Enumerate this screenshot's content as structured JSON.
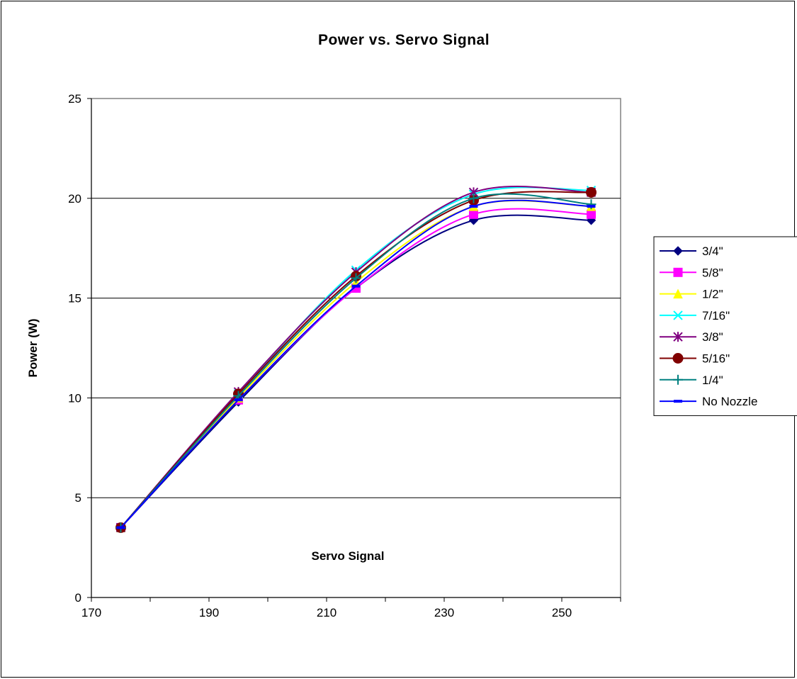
{
  "chart_data": {
    "type": "line",
    "title": "Power vs. Servo Signal",
    "xlabel": "Servo Signal",
    "ylabel": "Power (W)",
    "xlim": [
      170,
      260
    ],
    "ylim": [
      0,
      25
    ],
    "x_ticks": [
      170,
      190,
      210,
      230,
      250
    ],
    "y_ticks": [
      0,
      5,
      10,
      15,
      20,
      25
    ],
    "grid": "horizontal",
    "legend_position": "right",
    "x": [
      175,
      195,
      215,
      235,
      255
    ],
    "series": [
      {
        "name": "3/4\"",
        "color": "#000080",
        "marker": "diamond",
        "values": [
          3.5,
          9.8,
          15.5,
          18.9,
          18.9
        ]
      },
      {
        "name": "5/8\"",
        "color": "#FF00FF",
        "marker": "square",
        "values": [
          3.5,
          9.9,
          15.5,
          19.2,
          19.2
        ]
      },
      {
        "name": "1/2\"",
        "color": "#FFFF00",
        "marker": "triangle",
        "values": [
          3.5,
          10.0,
          15.8,
          19.6,
          19.6
        ]
      },
      {
        "name": "7/16\"",
        "color": "#00FFFF",
        "marker": "x",
        "values": [
          3.5,
          10.2,
          16.4,
          20.2,
          20.4
        ]
      },
      {
        "name": "3/8\"",
        "color": "#800080",
        "marker": "star",
        "values": [
          3.5,
          10.3,
          16.3,
          20.3,
          20.3
        ]
      },
      {
        "name": "5/16\"",
        "color": "#800000",
        "marker": "circle",
        "values": [
          3.5,
          10.2,
          16.1,
          19.9,
          20.3
        ]
      },
      {
        "name": "1/4\"",
        "color": "#008080",
        "marker": "plus",
        "values": [
          3.5,
          10.1,
          16.0,
          20.0,
          19.7
        ]
      },
      {
        "name": "No Nozzle",
        "color": "#0000FF",
        "marker": "dash",
        "values": [
          3.5,
          9.9,
          15.6,
          19.6,
          19.6
        ]
      }
    ]
  }
}
